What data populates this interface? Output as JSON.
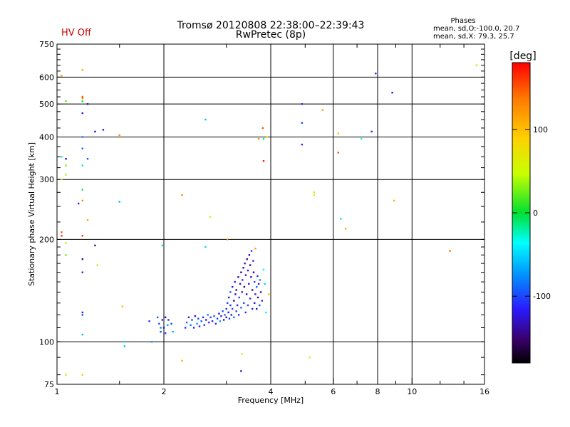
{
  "status_label": "HV Off",
  "status_color": "#cc0000",
  "chart_data": {
    "type": "scatter",
    "title": "Tromsø 20120808 22:38:00–22:39:43",
    "subtitle": "RwPretec (8p)",
    "xlabel": "Frequency [MHz]",
    "ylabel": "Stationary phase Virtual Height [km]",
    "x_scale": "log",
    "y_scale": "log",
    "xlim": [
      1,
      16
    ],
    "ylim": [
      75,
      750
    ],
    "x_ticks": [
      1,
      2,
      4,
      6,
      8,
      10,
      16
    ],
    "x_tick_labels": [
      "1",
      "2",
      "4",
      "6",
      "8",
      "10",
      "16"
    ],
    "x_grid": [
      2,
      4,
      6,
      8,
      10
    ],
    "y_ticks": [
      75,
      100,
      200,
      300,
      400,
      500,
      600,
      750
    ],
    "y_tick_labels": [
      "75",
      "100",
      "200",
      "300",
      "400",
      "500",
      "600",
      "750"
    ],
    "y_grid": [
      100,
      200,
      300,
      400,
      500,
      600
    ],
    "grid": true,
    "stats": {
      "heading": "Phases",
      "line1": "mean, sd,O:-100.0, 20.7",
      "line2": "mean, sd,X:  79.3, 25.7"
    },
    "colorbar": {
      "label": "[deg]",
      "range": [
        -180,
        180
      ],
      "ticks": [
        100,
        0,
        -100
      ],
      "tick_labels": [
        "100",
        "0",
        "-100"
      ]
    },
    "points": [
      {
        "x": 1.03,
        "y": 605,
        "v": 130
      },
      {
        "x": 1.03,
        "y": 350,
        "v": -30
      },
      {
        "x": 1.03,
        "y": 300,
        "v": 60
      },
      {
        "x": 1.03,
        "y": 210,
        "v": 150
      },
      {
        "x": 1.03,
        "y": 205,
        "v": 160
      },
      {
        "x": 1.06,
        "y": 510,
        "v": 20
      },
      {
        "x": 1.06,
        "y": 345,
        "v": -120
      },
      {
        "x": 1.06,
        "y": 330,
        "v": 30
      },
      {
        "x": 1.06,
        "y": 310,
        "v": 40
      },
      {
        "x": 1.06,
        "y": 195,
        "v": 40
      },
      {
        "x": 1.06,
        "y": 180,
        "v": 30
      },
      {
        "x": 1.06,
        "y": 80,
        "v": 40
      },
      {
        "x": 1.18,
        "y": 630,
        "v": 110
      },
      {
        "x": 1.18,
        "y": 525,
        "v": 150
      },
      {
        "x": 1.18,
        "y": 520,
        "v": 140
      },
      {
        "x": 1.18,
        "y": 510,
        "v": 0
      },
      {
        "x": 1.18,
        "y": 470,
        "v": -120
      },
      {
        "x": 1.18,
        "y": 400,
        "v": -80
      },
      {
        "x": 1.18,
        "y": 370,
        "v": -90
      },
      {
        "x": 1.18,
        "y": 330,
        "v": -20
      },
      {
        "x": 1.18,
        "y": 280,
        "v": -10
      },
      {
        "x": 1.18,
        "y": 260,
        "v": 130
      },
      {
        "x": 1.18,
        "y": 205,
        "v": 160
      },
      {
        "x": 1.18,
        "y": 175,
        "v": -140
      },
      {
        "x": 1.18,
        "y": 160,
        "v": -110
      },
      {
        "x": 1.18,
        "y": 122,
        "v": -120
      },
      {
        "x": 1.18,
        "y": 120,
        "v": -100
      },
      {
        "x": 1.18,
        "y": 105,
        "v": -60
      },
      {
        "x": 1.18,
        "y": 80,
        "v": 100
      },
      {
        "x": 1.15,
        "y": 255,
        "v": -110
      },
      {
        "x": 1.22,
        "y": 500,
        "v": -130
      },
      {
        "x": 1.22,
        "y": 345,
        "v": -90
      },
      {
        "x": 1.22,
        "y": 228,
        "v": 110
      },
      {
        "x": 1.28,
        "y": 192,
        "v": -140
      },
      {
        "x": 1.28,
        "y": 415,
        "v": -130
      },
      {
        "x": 1.3,
        "y": 168,
        "v": 40
      },
      {
        "x": 1.35,
        "y": 420,
        "v": -120
      },
      {
        "x": 1.5,
        "y": 405,
        "v": 130
      },
      {
        "x": 1.5,
        "y": 258,
        "v": -60
      },
      {
        "x": 1.53,
        "y": 127,
        "v": 100
      },
      {
        "x": 1.55,
        "y": 100,
        "v": -50
      },
      {
        "x": 1.55,
        "y": 97,
        "v": -60
      },
      {
        "x": 1.82,
        "y": 115,
        "v": -110
      },
      {
        "x": 1.85,
        "y": 100,
        "v": -70
      },
      {
        "x": 1.92,
        "y": 118,
        "v": -90
      },
      {
        "x": 1.94,
        "y": 113,
        "v": -100
      },
      {
        "x": 1.96,
        "y": 110,
        "v": -80
      },
      {
        "x": 1.96,
        "y": 107,
        "v": -100
      },
      {
        "x": 1.98,
        "y": 116,
        "v": -110
      },
      {
        "x": 2.0,
        "y": 110,
        "v": -120
      },
      {
        "x": 2.02,
        "y": 118,
        "v": -130
      },
      {
        "x": 2.02,
        "y": 106,
        "v": -100
      },
      {
        "x": 2.05,
        "y": 112,
        "v": -70
      },
      {
        "x": 2.06,
        "y": 116,
        "v": -110
      },
      {
        "x": 2.1,
        "y": 113,
        "v": -100
      },
      {
        "x": 2.12,
        "y": 107,
        "v": -60
      },
      {
        "x": 1.98,
        "y": 192,
        "v": -20
      },
      {
        "x": 2.25,
        "y": 270,
        "v": 130
      },
      {
        "x": 2.25,
        "y": 88,
        "v": 110
      },
      {
        "x": 2.3,
        "y": 110,
        "v": -110
      },
      {
        "x": 2.32,
        "y": 114,
        "v": -90
      },
      {
        "x": 2.35,
        "y": 118,
        "v": -120
      },
      {
        "x": 2.38,
        "y": 112,
        "v": -80
      },
      {
        "x": 2.4,
        "y": 116,
        "v": -100
      },
      {
        "x": 2.43,
        "y": 110,
        "v": -110
      },
      {
        "x": 2.45,
        "y": 119,
        "v": -130
      },
      {
        "x": 2.48,
        "y": 113,
        "v": -70
      },
      {
        "x": 2.5,
        "y": 117,
        "v": -100
      },
      {
        "x": 2.52,
        "y": 111,
        "v": -120
      },
      {
        "x": 2.55,
        "y": 115,
        "v": -90
      },
      {
        "x": 2.58,
        "y": 118,
        "v": -110
      },
      {
        "x": 2.6,
        "y": 112,
        "v": -100
      },
      {
        "x": 2.62,
        "y": 450,
        "v": -60
      },
      {
        "x": 2.62,
        "y": 190,
        "v": -50
      },
      {
        "x": 2.63,
        "y": 116,
        "v": -130
      },
      {
        "x": 2.66,
        "y": 120,
        "v": -80
      },
      {
        "x": 2.68,
        "y": 114,
        "v": -110
      },
      {
        "x": 2.7,
        "y": 233,
        "v": 60
      },
      {
        "x": 2.71,
        "y": 118,
        "v": -100
      },
      {
        "x": 2.74,
        "y": 115,
        "v": -120
      },
      {
        "x": 2.77,
        "y": 119,
        "v": -90
      },
      {
        "x": 2.8,
        "y": 113,
        "v": -110
      },
      {
        "x": 2.83,
        "y": 117,
        "v": -100
      },
      {
        "x": 2.86,
        "y": 121,
        "v": -130
      },
      {
        "x": 2.88,
        "y": 115,
        "v": -70
      },
      {
        "x": 2.9,
        "y": 119,
        "v": -110
      },
      {
        "x": 2.93,
        "y": 123,
        "v": -100
      },
      {
        "x": 2.95,
        "y": 116,
        "v": -120
      },
      {
        "x": 2.97,
        "y": 120,
        "v": -90
      },
      {
        "x": 3.0,
        "y": 125,
        "v": -110
      },
      {
        "x": 3.0,
        "y": 118,
        "v": -140
      },
      {
        "x": 3.02,
        "y": 130,
        "v": -100
      },
      {
        "x": 3.02,
        "y": 200,
        "v": 120
      },
      {
        "x": 3.04,
        "y": 122,
        "v": -120
      },
      {
        "x": 3.05,
        "y": 135,
        "v": -130
      },
      {
        "x": 3.06,
        "y": 117,
        "v": -100
      },
      {
        "x": 3.08,
        "y": 128,
        "v": -110
      },
      {
        "x": 3.08,
        "y": 140,
        "v": -90
      },
      {
        "x": 3.1,
        "y": 120,
        "v": -130
      },
      {
        "x": 3.12,
        "y": 145,
        "v": -120
      },
      {
        "x": 3.12,
        "y": 125,
        "v": -100
      },
      {
        "x": 3.15,
        "y": 132,
        "v": -140
      },
      {
        "x": 3.15,
        "y": 118,
        "v": -80
      },
      {
        "x": 3.17,
        "y": 150,
        "v": -110
      },
      {
        "x": 3.18,
        "y": 138,
        "v": -130
      },
      {
        "x": 3.2,
        "y": 123,
        "v": -100
      },
      {
        "x": 3.2,
        "y": 142,
        "v": -150
      },
      {
        "x": 3.22,
        "y": 128,
        "v": -120
      },
      {
        "x": 3.24,
        "y": 155,
        "v": -140
      },
      {
        "x": 3.25,
        "y": 120,
        "v": -110
      },
      {
        "x": 3.26,
        "y": 135,
        "v": -100
      },
      {
        "x": 3.28,
        "y": 148,
        "v": -130
      },
      {
        "x": 3.3,
        "y": 160,
        "v": -150
      },
      {
        "x": 3.3,
        "y": 126,
        "v": -90
      },
      {
        "x": 3.32,
        "y": 140,
        "v": -120
      },
      {
        "x": 3.32,
        "y": 92,
        "v": 60
      },
      {
        "x": 3.33,
        "y": 152,
        "v": -110
      },
      {
        "x": 3.35,
        "y": 165,
        "v": -140
      },
      {
        "x": 3.36,
        "y": 130,
        "v": -100
      },
      {
        "x": 3.37,
        "y": 145,
        "v": -150
      },
      {
        "x": 3.38,
        "y": 170,
        "v": -130
      },
      {
        "x": 3.4,
        "y": 122,
        "v": -110
      },
      {
        "x": 3.4,
        "y": 157,
        "v": -120
      },
      {
        "x": 3.42,
        "y": 138,
        "v": -140
      },
      {
        "x": 3.43,
        "y": 175,
        "v": -150
      },
      {
        "x": 3.45,
        "y": 128,
        "v": -100
      },
      {
        "x": 3.45,
        "y": 162,
        "v": -130
      },
      {
        "x": 3.47,
        "y": 148,
        "v": -120
      },
      {
        "x": 3.48,
        "y": 180,
        "v": -140
      },
      {
        "x": 3.5,
        "y": 134,
        "v": -110
      },
      {
        "x": 3.5,
        "y": 168,
        "v": -150
      },
      {
        "x": 3.52,
        "y": 155,
        "v": -130
      },
      {
        "x": 3.53,
        "y": 185,
        "v": -100
      },
      {
        "x": 3.55,
        "y": 125,
        "v": -120
      },
      {
        "x": 3.55,
        "y": 142,
        "v": -140
      },
      {
        "x": 3.57,
        "y": 173,
        "v": -110
      },
      {
        "x": 3.58,
        "y": 160,
        "v": -150
      },
      {
        "x": 3.6,
        "y": 130,
        "v": -130
      },
      {
        "x": 3.6,
        "y": 150,
        "v": -100
      },
      {
        "x": 3.62,
        "y": 138,
        "v": -120
      },
      {
        "x": 3.62,
        "y": 188,
        "v": 120
      },
      {
        "x": 3.65,
        "y": 145,
        "v": -90
      },
      {
        "x": 3.65,
        "y": 125,
        "v": -130
      },
      {
        "x": 3.67,
        "y": 156,
        "v": -110
      },
      {
        "x": 3.68,
        "y": 135,
        "v": -140
      },
      {
        "x": 3.7,
        "y": 148,
        "v": -120
      },
      {
        "x": 3.7,
        "y": 395,
        "v": 120
      },
      {
        "x": 3.72,
        "y": 128,
        "v": -100
      },
      {
        "x": 3.73,
        "y": 152,
        "v": -80
      },
      {
        "x": 3.75,
        "y": 140,
        "v": -130
      },
      {
        "x": 3.78,
        "y": 132,
        "v": -110
      },
      {
        "x": 3.8,
        "y": 425,
        "v": 150
      },
      {
        "x": 3.82,
        "y": 340,
        "v": 170
      },
      {
        "x": 3.82,
        "y": 395,
        "v": -20
      },
      {
        "x": 3.82,
        "y": 163,
        "v": -40
      },
      {
        "x": 3.85,
        "y": 148,
        "v": -50
      },
      {
        "x": 3.88,
        "y": 122,
        "v": -40
      },
      {
        "x": 3.9,
        "y": 400,
        "v": 90
      },
      {
        "x": 3.95,
        "y": 138,
        "v": 100
      },
      {
        "x": 3.3,
        "y": 82,
        "v": -130
      },
      {
        "x": 4.9,
        "y": 500,
        "v": -110
      },
      {
        "x": 4.9,
        "y": 440,
        "v": -100
      },
      {
        "x": 4.9,
        "y": 380,
        "v": -110
      },
      {
        "x": 5.15,
        "y": 90,
        "v": 60
      },
      {
        "x": 5.3,
        "y": 275,
        "v": 40
      },
      {
        "x": 5.3,
        "y": 270,
        "v": 60
      },
      {
        "x": 5.6,
        "y": 480,
        "v": 120
      },
      {
        "x": 6.2,
        "y": 360,
        "v": 150
      },
      {
        "x": 6.2,
        "y": 410,
        "v": 100
      },
      {
        "x": 6.3,
        "y": 230,
        "v": -20
      },
      {
        "x": 6.5,
        "y": 215,
        "v": 110
      },
      {
        "x": 7.2,
        "y": 395,
        "v": -30
      },
      {
        "x": 7.7,
        "y": 415,
        "v": -110
      },
      {
        "x": 7.9,
        "y": 615,
        "v": -110
      },
      {
        "x": 8.8,
        "y": 540,
        "v": -120
      },
      {
        "x": 8.9,
        "y": 260,
        "v": 110
      },
      {
        "x": 12.8,
        "y": 185,
        "v": 140
      },
      {
        "x": 15.2,
        "y": 650,
        "v": 40
      }
    ]
  }
}
